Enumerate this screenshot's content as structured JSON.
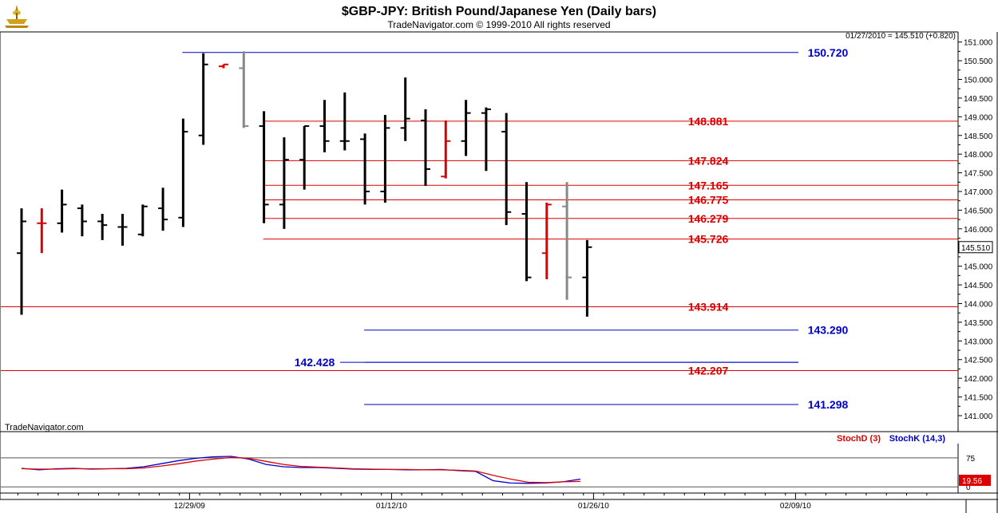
{
  "header": {
    "title": "$GBP-JPY:  British Pound/Japanese Yen  (Daily bars)",
    "copyright": "TradeNavigator.com © 1999-2010 All rights reserved",
    "last_quote": "01/27/2010 = 145.510 (+0.820)",
    "watermark": "TradeNavigator.com"
  },
  "chart_data": [
    {
      "type": "ohlc",
      "y_axis": {
        "ticks": [
          "151.000",
          "150.500",
          "150.000",
          "149.500",
          "149.000",
          "148.500",
          "148.000",
          "147.500",
          "147.000",
          "146.500",
          "146.000",
          "145.500",
          "145.000",
          "144.500",
          "144.000",
          "143.500",
          "143.000",
          "142.500",
          "142.000",
          "141.500",
          "141.000"
        ],
        "range": [
          140.8,
          151.25
        ],
        "current_price_label": "145.510"
      },
      "x_axis": {
        "ticks": [
          {
            "label": "12/29/09",
            "index": 8
          },
          {
            "label": "01/12/10",
            "index": 18
          },
          {
            "label": "01/26/10",
            "index": 28
          },
          {
            "label": "02/09/10",
            "index": 38
          }
        ]
      },
      "bars": [
        {
          "o": 145.35,
          "h": 146.55,
          "l": 143.7,
          "c": 146.2,
          "color": "#000000"
        },
        {
          "o": 146.15,
          "h": 146.55,
          "l": 145.35,
          "c": 146.15,
          "color": "#dd0000"
        },
        {
          "o": 146.15,
          "h": 147.05,
          "l": 145.9,
          "c": 146.65,
          "color": "#000000"
        },
        {
          "o": 146.55,
          "h": 146.65,
          "l": 145.8,
          "c": 146.2,
          "color": "#000000"
        },
        {
          "o": 146.2,
          "h": 146.4,
          "l": 145.7,
          "c": 146.1,
          "color": "#000000"
        },
        {
          "o": 146.05,
          "h": 146.4,
          "l": 145.55,
          "c": 146.05,
          "color": "#000000"
        },
        {
          "o": 145.85,
          "h": 146.65,
          "l": 145.8,
          "c": 146.6,
          "color": "#000000"
        },
        {
          "o": 146.55,
          "h": 147.1,
          "l": 145.95,
          "c": 146.25,
          "color": "#000000"
        },
        {
          "o": 146.3,
          "h": 148.95,
          "l": 146.05,
          "c": 148.6,
          "color": "#000000"
        },
        {
          "o": 148.5,
          "h": 150.7,
          "l": 148.25,
          "c": 150.4,
          "color": "#000000"
        },
        {
          "o": 150.35,
          "h": 150.4,
          "l": 150.3,
          "c": 150.4,
          "color": "#dd0000"
        },
        {
          "o": 150.3,
          "h": 150.75,
          "l": 148.7,
          "c": 148.75,
          "color": "#888888"
        },
        {
          "o": 148.75,
          "h": 149.15,
          "l": 146.15,
          "c": 146.65,
          "color": "#000000"
        },
        {
          "o": 146.65,
          "h": 148.45,
          "l": 146.0,
          "c": 147.85,
          "color": "#000000"
        },
        {
          "o": 147.85,
          "h": 148.75,
          "l": 147.05,
          "c": 148.75,
          "color": "#000000"
        },
        {
          "o": 148.75,
          "h": 149.45,
          "l": 148.05,
          "c": 148.35,
          "color": "#000000"
        },
        {
          "o": 148.35,
          "h": 149.65,
          "l": 148.1,
          "c": 148.35,
          "color": "#000000"
        },
        {
          "o": 148.4,
          "h": 148.55,
          "l": 146.65,
          "c": 147.0,
          "color": "#000000"
        },
        {
          "o": 147.0,
          "h": 149.05,
          "l": 146.7,
          "c": 148.7,
          "color": "#000000"
        },
        {
          "o": 148.7,
          "h": 150.05,
          "l": 148.35,
          "c": 148.95,
          "color": "#000000"
        },
        {
          "o": 148.9,
          "h": 149.2,
          "l": 147.15,
          "c": 147.6,
          "color": "#000000"
        },
        {
          "o": 147.4,
          "h": 148.9,
          "l": 147.35,
          "c": 148.35,
          "color": "#dd0000"
        },
        {
          "o": 148.35,
          "h": 149.45,
          "l": 147.95,
          "c": 149.1,
          "color": "#000000"
        },
        {
          "o": 149.1,
          "h": 149.25,
          "l": 147.55,
          "c": 149.2,
          "color": "#000000"
        },
        {
          "o": 148.6,
          "h": 149.1,
          "l": 146.1,
          "c": 146.45,
          "color": "#000000"
        },
        {
          "o": 146.4,
          "h": 147.25,
          "l": 144.6,
          "c": 144.7,
          "color": "#000000"
        },
        {
          "o": 145.35,
          "h": 146.7,
          "l": 144.65,
          "c": 146.65,
          "color": "#dd0000"
        },
        {
          "o": 146.6,
          "h": 147.25,
          "l": 144.1,
          "c": 144.7,
          "color": "#888888"
        },
        {
          "o": 144.7,
          "h": 145.7,
          "l": 143.65,
          "c": 145.51,
          "color": "#000000"
        }
      ]
    },
    {
      "type": "line",
      "name": "stochastic",
      "y_axis": {
        "ticks": [
          "75",
          "0"
        ],
        "range": [
          -12,
          110
        ]
      },
      "legend": [
        {
          "label": "StochD (3)",
          "color": "#dd0000"
        },
        {
          "label": "StochK (14,3)",
          "color": "#0000cc"
        }
      ],
      "current_value_label": "19.56",
      "series": [
        {
          "name": "StochK (14,3)",
          "color": "#0000cc",
          "values": [
            48,
            44,
            47,
            48,
            46,
            47,
            48,
            52,
            60,
            68,
            74,
            78,
            79,
            72,
            58,
            52,
            50,
            50,
            48,
            46,
            45,
            45,
            44,
            44,
            45,
            42,
            40,
            16,
            10,
            9,
            10,
            13,
            20
          ]
        },
        {
          "name": "StochD (3)",
          "color": "#dd0000",
          "values": [
            47,
            46,
            46,
            47,
            47,
            47,
            47,
            49,
            54,
            60,
            67,
            72,
            76,
            74,
            66,
            58,
            53,
            51,
            49,
            47,
            46,
            45,
            45,
            44,
            44,
            43,
            41,
            30,
            20,
            12,
            11,
            13,
            14
          ]
        }
      ]
    }
  ],
  "levels": [
    {
      "value": "150.720",
      "price": 150.72,
      "color": "#0000cc",
      "line_from": 8,
      "line_to": 33,
      "label_side": "right"
    },
    {
      "value": "148.881",
      "price": 148.881,
      "color": "#dd0000",
      "line_from": 12,
      "line_to": 33,
      "label_side": "mid"
    },
    {
      "value": "147.824",
      "price": 147.824,
      "color": "#dd0000",
      "line_from": 12,
      "line_to": 33,
      "label_side": "mid"
    },
    {
      "value": "147.165",
      "price": 147.165,
      "color": "#dd0000",
      "line_from": 12,
      "line_to": 33,
      "label_side": "mid"
    },
    {
      "value": "146.775",
      "price": 146.775,
      "color": "#dd0000",
      "line_from": 12,
      "line_to": 33,
      "label_side": "mid"
    },
    {
      "value": "146.279",
      "price": 146.279,
      "color": "#dd0000",
      "line_from": 12,
      "line_to": 33,
      "label_side": "mid"
    },
    {
      "value": "145.726",
      "price": 145.726,
      "color": "#dd0000",
      "line_from": 12,
      "line_to": 33,
      "label_side": "mid"
    },
    {
      "value": "143.914",
      "price": 143.914,
      "color": "#dd0000",
      "line_from": -1,
      "line_to": 33,
      "label_side": "mid"
    },
    {
      "value": "143.290",
      "price": 143.29,
      "color": "#0000cc",
      "line_from": 17,
      "line_to": 40,
      "label_side": "right"
    },
    {
      "value": "142.428",
      "price": 142.428,
      "color": "#0000cc",
      "line_from": 17,
      "line_to": 40,
      "label_side": "left"
    },
    {
      "value": "142.207",
      "price": 142.207,
      "color": "#dd0000",
      "line_from": -1,
      "line_to": 33,
      "label_side": "mid"
    },
    {
      "value": "141.298",
      "price": 141.298,
      "color": "#0000cc",
      "line_from": 17,
      "line_to": 40,
      "label_side": "right"
    }
  ]
}
